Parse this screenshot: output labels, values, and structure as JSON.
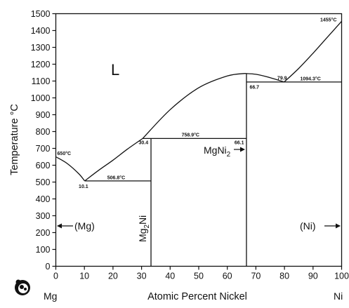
{
  "chart_data": {
    "type": "line",
    "title": "",
    "xlabel": "Atomic Percent Nickel",
    "ylabel": "Temperature °C",
    "xlim": [
      0,
      100
    ],
    "ylim": [
      0,
      1500
    ],
    "x_ticks": [
      "0",
      "10",
      "20",
      "30",
      "40",
      "50",
      "60",
      "70",
      "80",
      "90",
      "100"
    ],
    "y_ticks": [
      "0",
      "100",
      "200",
      "300",
      "400",
      "500",
      "600",
      "700",
      "800",
      "900",
      "1000",
      "1100",
      "1200",
      "1300",
      "1400",
      "1500"
    ],
    "end_labels": {
      "left": "Mg",
      "right": "Ni"
    },
    "liquidus_curves": [
      {
        "x": [
          0,
          4,
          8,
          10.1
        ],
        "y": [
          650,
          610,
          550,
          506.8
        ]
      },
      {
        "x": [
          10.1,
          15,
          20,
          25,
          30.4
        ],
        "y": [
          506.8,
          570,
          630,
          695,
          758.9
        ]
      },
      {
        "x": [
          30.4,
          40,
          50,
          60,
          66.1
        ],
        "y": [
          758.9,
          930,
          1060,
          1130,
          1145
        ]
      },
      {
        "x": [
          66.1,
          70,
          75,
          79.9
        ],
        "y": [
          1145,
          1140,
          1120,
          1094.3
        ]
      },
      {
        "x": [
          79.9,
          85,
          90,
          95,
          100
        ],
        "y": [
          1094.3,
          1175,
          1265,
          1360,
          1455
        ]
      }
    ],
    "isotherms": [
      {
        "x": [
          10.1,
          33.3
        ],
        "y": [
          506.8,
          506.8
        ]
      },
      {
        "x": [
          30.4,
          66.7
        ],
        "y": [
          758.9,
          758.9
        ]
      },
      {
        "x": [
          66.7,
          100
        ],
        "y": [
          1094.3,
          1094.3
        ]
      }
    ],
    "phase_lines": [
      {
        "x": [
          33.3,
          33.3
        ],
        "y": [
          0,
          758.9
        ]
      },
      {
        "x": [
          66.7,
          66.7
        ],
        "y": [
          0,
          1145
        ]
      }
    ],
    "annotations": [
      {
        "text": "650°C",
        "x": 0.5,
        "y": 660
      },
      {
        "text": "10.1",
        "x": 8,
        "y": 465
      },
      {
        "text": "506.8°C",
        "x": 18,
        "y": 517
      },
      {
        "text": "30.4",
        "x": 29,
        "y": 725
      },
      {
        "text": "758.9°C",
        "x": 44,
        "y": 770
      },
      {
        "text": "66.1",
        "x": 62.5,
        "y": 725
      },
      {
        "text": "66.7",
        "x": 67.8,
        "y": 1055
      },
      {
        "text": "79.9",
        "x": 77.5,
        "y": 1108
      },
      {
        "text": "1094.3°C",
        "x": 85.5,
        "y": 1105
      },
      {
        "text": "1455°C",
        "x": 92.5,
        "y": 1455
      }
    ],
    "phase_regions": [
      {
        "label": "L",
        "x": 21.5,
        "y": 1155
      },
      {
        "label": "MgNi2",
        "x": 51.5,
        "y": 645
      },
      {
        "label": "Mg2Ni",
        "x": 31.5,
        "y": 170
      },
      {
        "label": "(Mg)",
        "x": 9.5,
        "y": 225
      },
      {
        "label": "(Ni)",
        "x": 90.5,
        "y": 225
      }
    ]
  }
}
